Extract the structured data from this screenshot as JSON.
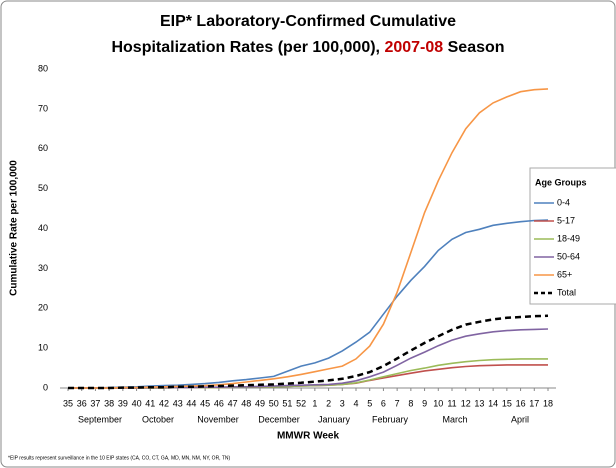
{
  "chart_data": {
    "type": "line",
    "title": {
      "line1": "EIP* Laboratory-Confirmed Cumulative",
      "line2": [
        "Hospitalization Rates (per 100,000), ",
        "2007-08",
        " Season"
      ]
    },
    "x_label": "MMWR Week",
    "y_label": "Cumulative Rate per 100,000",
    "months": [
      "September",
      "October",
      "November",
      "December",
      "January",
      "February",
      "March",
      "April"
    ],
    "footnote": "*EIP results represent surveillance in the 10 EIP states (CA, CO, CT, GA, MD, MN, NM, NY, OR, TN)",
    "legend_title": "Age Groups",
    "categories": [
      "35",
      "36",
      "37",
      "38",
      "39",
      "40",
      "41",
      "42",
      "43",
      "44",
      "45",
      "46",
      "47",
      "48",
      "49",
      "50",
      "51",
      "52",
      "1",
      "2",
      "3",
      "4",
      "5",
      "6",
      "7",
      "8",
      "9",
      "10",
      "11",
      "12",
      "13",
      "14",
      "15",
      "16",
      "17",
      "18"
    ],
    "ylim": [
      0,
      80
    ],
    "yticks": [
      0,
      10,
      20,
      30,
      40,
      50,
      60,
      70,
      80
    ],
    "series": [
      {
        "name": "0-4",
        "color": "#4f81bd",
        "values": [
          0,
          0,
          0,
          0.1,
          0.2,
          0.3,
          0.5,
          0.6,
          0.7,
          0.9,
          1.1,
          1.4,
          1.8,
          2.1,
          2.5,
          2.9,
          4.2,
          5.5,
          6.3,
          7.5,
          9.3,
          11.5,
          14,
          18.5,
          23,
          27,
          30.5,
          34.5,
          37.3,
          39,
          39.8,
          40.8,
          41.3,
          41.7,
          42,
          42.1
        ]
      },
      {
        "name": "5-17",
        "color": "#c0504d",
        "values": [
          0,
          0,
          0,
          0,
          0,
          0,
          0,
          0,
          0.1,
          0.1,
          0.1,
          0.1,
          0.2,
          0.2,
          0.3,
          0.3,
          0.4,
          0.5,
          0.6,
          0.7,
          0.9,
          1.2,
          1.9,
          2.5,
          3.1,
          3.7,
          4.3,
          4.7,
          5.1,
          5.4,
          5.6,
          5.7,
          5.8,
          5.8,
          5.8,
          5.8
        ]
      },
      {
        "name": "18-49",
        "color": "#9bbb59",
        "values": [
          0,
          0,
          0,
          0,
          0,
          0,
          0,
          0,
          0.1,
          0.1,
          0.1,
          0.1,
          0.2,
          0.2,
          0.3,
          0.3,
          0.4,
          0.5,
          0.6,
          0.7,
          0.9,
          1.3,
          2,
          2.8,
          3.6,
          4.4,
          5,
          5.7,
          6.2,
          6.6,
          6.9,
          7.1,
          7.2,
          7.3,
          7.3,
          7.3
        ]
      },
      {
        "name": "50-64",
        "color": "#8064a2",
        "values": [
          0,
          0,
          0,
          0,
          0,
          0,
          0.1,
          0.1,
          0.1,
          0.1,
          0.2,
          0.2,
          0.3,
          0.3,
          0.4,
          0.5,
          0.6,
          0.7,
          0.8,
          0.9,
          1.2,
          1.8,
          2.8,
          4,
          5.7,
          7.5,
          9,
          10.6,
          12,
          13,
          13.6,
          14.1,
          14.4,
          14.6,
          14.7,
          14.8
        ]
      },
      {
        "name": "65+",
        "color": "#f79646",
        "values": [
          0,
          0,
          0,
          0,
          0.1,
          0.1,
          0.2,
          0.3,
          0.4,
          0.5,
          0.6,
          0.8,
          1.1,
          1.5,
          1.9,
          2.3,
          2.8,
          3.4,
          4.1,
          4.8,
          5.5,
          7.3,
          10.5,
          16,
          24,
          34,
          44,
          52,
          59,
          65,
          69,
          71.5,
          73,
          74.3,
          74.8,
          75
        ]
      },
      {
        "name": "Total",
        "color": "#000000",
        "dashed": true,
        "values": [
          0,
          0,
          0,
          0,
          0.1,
          0.1,
          0.2,
          0.2,
          0.3,
          0.3,
          0.4,
          0.5,
          0.6,
          0.7,
          0.8,
          0.9,
          1.1,
          1.3,
          1.6,
          1.9,
          2.3,
          3,
          4,
          5.5,
          7.4,
          9.4,
          11.3,
          13,
          14.6,
          15.9,
          16.6,
          17.2,
          17.6,
          17.8,
          18,
          18.1
        ]
      }
    ]
  }
}
